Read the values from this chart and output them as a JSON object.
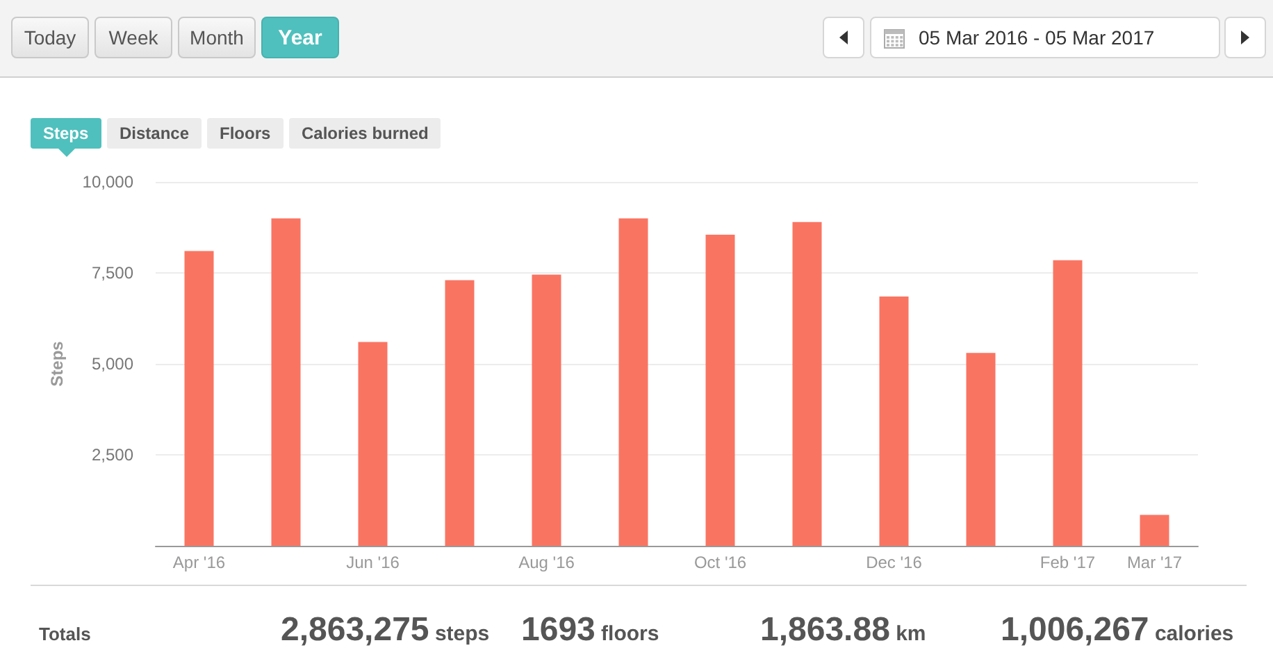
{
  "chart_data": {
    "type": "bar",
    "categories": [
      "Apr '16",
      null,
      "Jun '16",
      null,
      "Aug '16",
      null,
      "Oct '16",
      null,
      "Dec '16",
      null,
      "Feb '17",
      "Mar '17"
    ],
    "values": [
      8100,
      9000,
      5600,
      7300,
      7450,
      9000,
      8550,
      8900,
      6850,
      5300,
      7850,
      850
    ],
    "color": "#fa7462",
    "ylabel": "Steps",
    "ylim": [
      0,
      10000
    ],
    "yticks": [
      {
        "value": 0,
        "label": null
      },
      {
        "value": 2500,
        "label": "2,500"
      },
      {
        "value": 5000,
        "label": "5,000"
      },
      {
        "value": 7500,
        "label": "7,500"
      },
      {
        "value": 10000,
        "label": "10,000"
      }
    ],
    "grid": "y",
    "annotations": [
      "Today",
      "Week",
      "Month",
      "Year",
      "05 Mar 2016 - 05 Mar 2017",
      "Steps",
      "Distance",
      "Floors",
      "Calories burned",
      "Totals",
      "2,863,275 steps",
      "1693 floors",
      "1,863.88 km",
      "1,006,267 calories"
    ]
  }
}
